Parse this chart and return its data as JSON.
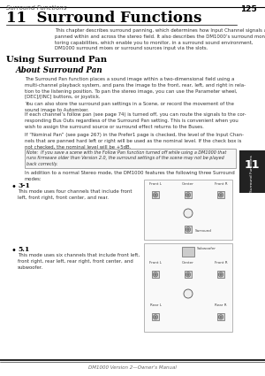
{
  "page_number": "125",
  "chapter_tab": "11",
  "header_text": "Surround Functions",
  "footer_text": "DM1000 Version 2—Owner's Manual",
  "chapter_title": "11  Surround Functions",
  "intro_text": "This chapter describes surround panning, which determines how Input Channel signals are\npanned within and across the stereo field. It also describes the DM1000’s surround moni-\ntoring capabilities, which enable you to monitor, in a surround sound environment,\nDM1000 surround mixes or surround sources input via the slots.",
  "section1_title": "Using Surround Pan",
  "subsection1_title": "About Surround Pan",
  "body_text1": "The Surround Pan function places a sound image within a two-dimensional field using a\nmulti-channel playback system, and pans the image to the front, rear, left, and right in rela-\ntion to the listening position. To pan the stereo image, you can use the Parameter wheel,\n[DEC]/[INC] buttons, or joystick.",
  "body_text2": "You can also store the surround pan settings in a Scene, or record the movement of the\nsound image to Automixer.",
  "body_text3": "If each channel’s follow pan (see page 74) is turned off, you can route the signals to the cor-\nresponding Bus Outs regardless of the Surround Pan setting. This is convenient when you\nwish to assign the surround source or surround effect returns to the Buses.",
  "body_text4": "If “Nominal Pan” (see page 267) in the Prefer1 page is checked, the level of the Input Chan-\nnels that are panned hard left or right will be used as the nominal level. If the check box is\nnot checked, the nominal level will be +5dB.",
  "note_text": "Note:  If you save a scene with the Follow Pan function turned off while using a DM1000 that\nruns firmware older than Version 2.0, the surround settings of the scene may not be played\nback correctly.",
  "body_text5": "In addition to a normal Stereo mode, the DM1000 features the following three Surround\nmodes:",
  "bullet1_title": "3-1",
  "bullet1_text": "This mode uses four channels that include front\nleft, front right, front center, and rear.",
  "bullet2_title": "5.1",
  "bullet2_text": "This mode uses six channels that include front left,\nfront right, rear left, rear right, front center, and\nsubwoofer.",
  "bg_color": "#ffffff",
  "text_color": "#000000",
  "note_bg": "#f5f5f5",
  "tab_bg": "#222222",
  "tab_text": "#ffffff",
  "diag1_labels": [
    "Front L",
    "Center",
    "Front R"
  ],
  "diag1_rear_label": "Surround",
  "diag2_labels": [
    "Front L",
    "Center",
    "Front R"
  ],
  "diag2_rear_labels": [
    "Rear L",
    "Rear R"
  ],
  "diag2_sub_label": "Subwoofer"
}
